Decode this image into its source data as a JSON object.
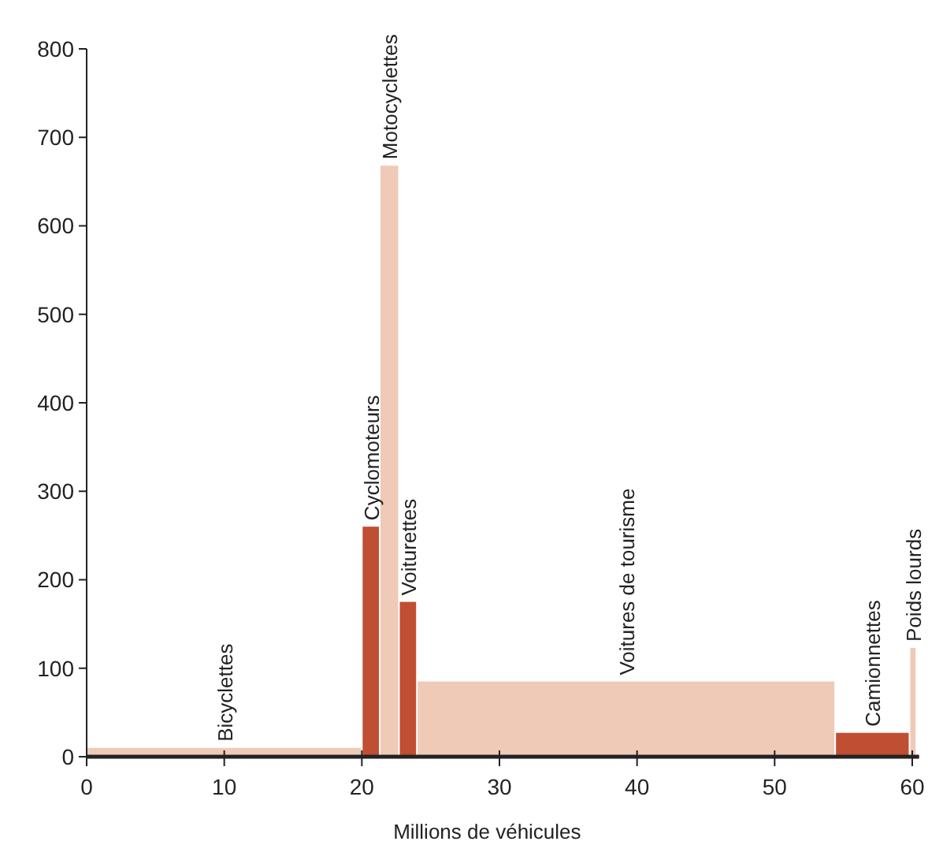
{
  "chart_data": {
    "type": "histogram",
    "xlabel": "Millions de véhicules",
    "bins": [
      0,
      20,
      21.3,
      22.7,
      24,
      54.4,
      59.8,
      60.3
    ],
    "values": [
      10,
      260,
      668,
      175,
      85,
      27,
      123
    ],
    "colors": [
      "#efcab7",
      "#c04e32",
      "#efcab7",
      "#c04e32",
      "#efcab7",
      "#c04e32",
      "#efcab7"
    ],
    "xlim": [
      0,
      60.5
    ],
    "xticks": [
      0,
      10,
      20,
      30,
      40,
      50,
      60
    ],
    "ylim": [
      0,
      800
    ],
    "yticks": [
      0,
      100,
      200,
      300,
      400,
      500,
      600,
      700,
      800
    ],
    "grid": false,
    "annotations": [
      {
        "text": "Bicyclettes",
        "x": 10,
        "y": 10
      },
      {
        "text": "Cyclomoteurs",
        "x": 20.65,
        "y": 260
      },
      {
        "text": "Motocyclettes",
        "x": 22,
        "y": 668
      },
      {
        "text": "Voiturettes",
        "x": 23.35,
        "y": 175
      },
      {
        "text": "Voitures de tourisme",
        "x": 39.2,
        "y": 85
      },
      {
        "text": "Camionnettes",
        "x": 57.1,
        "y": 27
      },
      {
        "text": "Poids lourds",
        "x": 60.05,
        "y": 123
      }
    ]
  }
}
